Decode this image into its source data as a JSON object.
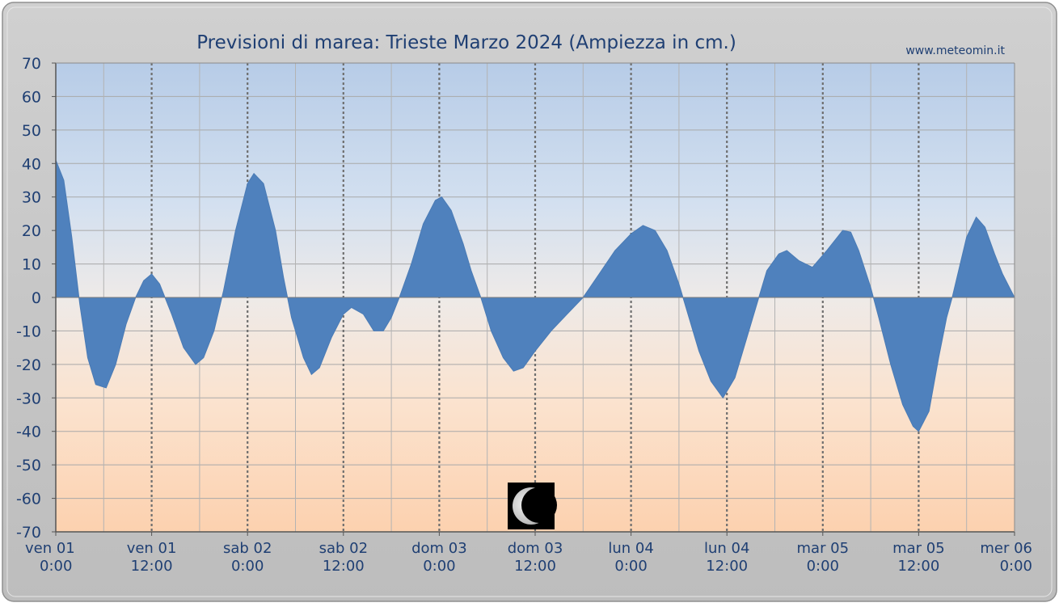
{
  "chart_data": {
    "type": "area",
    "title": "Previsioni di marea: Trieste Marzo 2024 (Ampiezza in cm.)",
    "watermark": "www.meteomin.it",
    "xlabel": "",
    "ylabel": "",
    "ylim": [
      -70,
      70
    ],
    "yticks": [
      70,
      60,
      50,
      40,
      30,
      20,
      10,
      0,
      -10,
      -20,
      -30,
      -40,
      -50,
      -60,
      -70
    ],
    "xlim_hours": [
      0,
      120
    ],
    "x_tick_labels": [
      {
        "hour": 0,
        "day": "ven",
        "date": "01",
        "time": "0:00"
      },
      {
        "hour": 12,
        "day": "ven",
        "date": "01",
        "time": "12:00"
      },
      {
        "hour": 24,
        "day": "sab",
        "date": "02",
        "time": "0:00"
      },
      {
        "hour": 36,
        "day": "sab",
        "date": "02",
        "time": "12:00"
      },
      {
        "hour": 48,
        "day": "dom",
        "date": "03",
        "time": "0:00"
      },
      {
        "hour": 60,
        "day": "dom",
        "date": "03",
        "time": "12:00"
      },
      {
        "hour": 72,
        "day": "lun",
        "date": "04",
        "time": "0:00"
      },
      {
        "hour": 84,
        "day": "lun",
        "date": "04",
        "time": "12:00"
      },
      {
        "hour": 96,
        "day": "mar",
        "date": "05",
        "time": "0:00"
      },
      {
        "hour": 108,
        "day": "mar",
        "date": "05",
        "time": "12:00"
      },
      {
        "hour": 120,
        "day": "mer",
        "date": "06",
        "time": "0:00"
      }
    ],
    "grid": true,
    "moon_phase": {
      "hour": 60,
      "phase": "last-quarter"
    },
    "series": [
      {
        "color": "#4f81bd",
        "points": [
          [
            0,
            41
          ],
          [
            1,
            35
          ],
          [
            2,
            18
          ],
          [
            3,
            -2
          ],
          [
            4,
            -18
          ],
          [
            5,
            -26
          ],
          [
            6.3,
            -27
          ],
          [
            7.5,
            -20
          ],
          [
            8.8,
            -8
          ],
          [
            10,
            0
          ],
          [
            11,
            5
          ],
          [
            12,
            7
          ],
          [
            13,
            4
          ],
          [
            14.5,
            -5
          ],
          [
            16,
            -15
          ],
          [
            17.5,
            -20
          ],
          [
            18.5,
            -18
          ],
          [
            19.8,
            -10
          ],
          [
            21,
            2
          ],
          [
            22.5,
            20
          ],
          [
            24,
            34
          ],
          [
            24.8,
            37
          ],
          [
            26,
            34
          ],
          [
            27.5,
            20
          ],
          [
            28.5,
            6
          ],
          [
            29.5,
            -6
          ],
          [
            31,
            -18
          ],
          [
            32,
            -23
          ],
          [
            33,
            -21
          ],
          [
            34.5,
            -12
          ],
          [
            36,
            -5
          ],
          [
            37,
            -3
          ],
          [
            38.5,
            -5
          ],
          [
            39.8,
            -10
          ],
          [
            41,
            -10
          ],
          [
            42,
            -6
          ],
          [
            43,
            0
          ],
          [
            44.5,
            10
          ],
          [
            46,
            22
          ],
          [
            47.5,
            29
          ],
          [
            48.3,
            30
          ],
          [
            49.5,
            26
          ],
          [
            51,
            16
          ],
          [
            52,
            8
          ],
          [
            53.2,
            0
          ],
          [
            54.5,
            -10
          ],
          [
            56,
            -18
          ],
          [
            57.3,
            -22
          ],
          [
            58.5,
            -21
          ],
          [
            60,
            -16
          ],
          [
            62,
            -10
          ],
          [
            64,
            -5
          ],
          [
            66,
            0
          ],
          [
            68,
            7
          ],
          [
            70,
            14
          ],
          [
            72,
            19
          ],
          [
            73.5,
            21.5
          ],
          [
            75,
            20
          ],
          [
            76.5,
            14
          ],
          [
            78,
            4
          ],
          [
            79,
            -4
          ],
          [
            80.5,
            -16
          ],
          [
            82,
            -25
          ],
          [
            83.5,
            -30
          ],
          [
            85,
            -24
          ],
          [
            86.5,
            -12
          ],
          [
            88,
            0
          ],
          [
            89,
            8
          ],
          [
            90.5,
            13
          ],
          [
            91.5,
            14
          ],
          [
            93,
            11
          ],
          [
            94.7,
            9
          ],
          [
            96.5,
            14
          ],
          [
            98.5,
            20
          ],
          [
            99.5,
            19.5
          ],
          [
            100.5,
            14
          ],
          [
            102,
            3
          ],
          [
            103,
            -6
          ],
          [
            104.5,
            -20
          ],
          [
            106,
            -32
          ],
          [
            107.3,
            -38.5
          ],
          [
            108,
            -40
          ],
          [
            109.3,
            -34
          ],
          [
            110.5,
            -18
          ],
          [
            111.5,
            -6
          ],
          [
            112.2,
            0
          ],
          [
            113,
            8
          ],
          [
            114,
            18
          ],
          [
            115.2,
            24
          ],
          [
            116.3,
            21
          ],
          [
            117.5,
            13
          ],
          [
            118.5,
            7
          ],
          [
            120,
            0
          ]
        ]
      }
    ]
  }
}
